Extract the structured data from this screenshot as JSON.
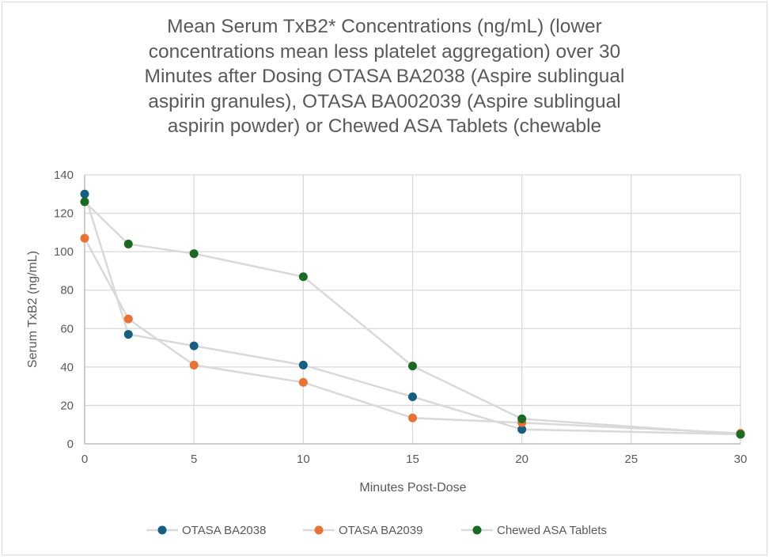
{
  "chart_data": {
    "type": "line",
    "title_lines": [
      "Mean Serum TxB2* Concentrations (ng/mL) (lower",
      "concentrations mean less platelet aggregation) over 30",
      "Minutes after Dosing OTASA BA2038 (Aspire sublingual",
      "aspirin granules), OTASA BA002039 (Aspire sublingual",
      "aspirin powder) or Chewed ASA Tablets (chewable"
    ],
    "xlabel": "Minutes Post-Dose",
    "ylabel": "Serum TxB2 (ng/mL)",
    "xlim": [
      0,
      30
    ],
    "ylim": [
      0,
      140
    ],
    "xticks": [
      0,
      5,
      10,
      15,
      20,
      25,
      30
    ],
    "yticks": [
      0,
      20,
      40,
      60,
      80,
      100,
      120,
      140
    ],
    "grid": true,
    "legend_position": "bottom",
    "line_color": "#d9d9d9",
    "series": [
      {
        "name": "OTASA BA2038",
        "color": "#156082",
        "x": [
          0,
          2,
          5,
          10,
          15,
          20,
          30
        ],
        "y": [
          130,
          57,
          51,
          41,
          24.5,
          7.5,
          5
        ]
      },
      {
        "name": "OTASA BA2039",
        "color": "#e97132",
        "x": [
          0,
          2,
          5,
          10,
          15,
          20,
          30
        ],
        "y": [
          107,
          65,
          41,
          32,
          13.5,
          11,
          5.5
        ]
      },
      {
        "name": "Chewed ASA Tablets",
        "color": "#196b24",
        "x": [
          0,
          2,
          5,
          10,
          15,
          20,
          30
        ],
        "y": [
          126,
          104,
          99,
          87,
          40.5,
          13,
          5
        ]
      }
    ]
  }
}
